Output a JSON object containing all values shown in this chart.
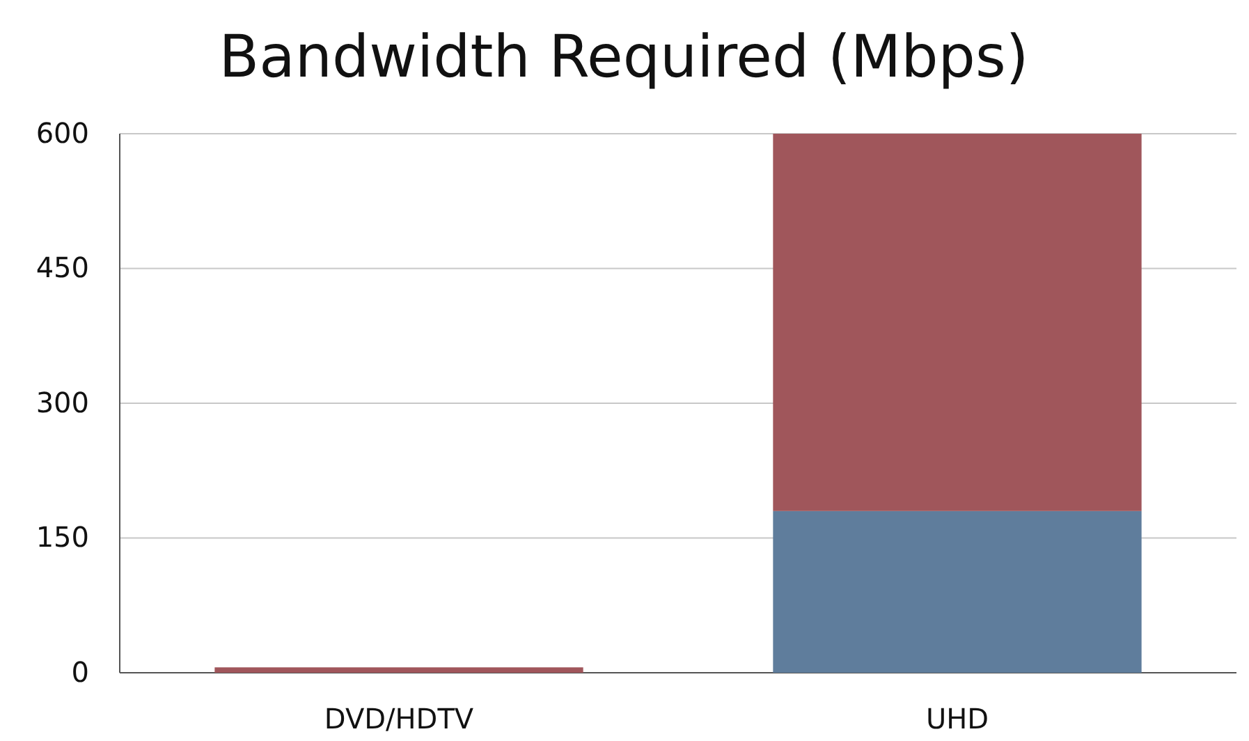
{
  "chart_data": {
    "type": "bar",
    "title": "Bandwidth Required (Mbps)",
    "categories": [
      "DVD/HDTV",
      "UHD"
    ],
    "stacked": true,
    "series": [
      {
        "color": "#5f7d9c",
        "values": [
          null,
          180
        ]
      },
      {
        "color": "#a0565b",
        "values": [
          6,
          420
        ]
      }
    ],
    "ylim": [
      0,
      600
    ],
    "yticks": [
      0,
      150,
      300,
      450,
      600
    ],
    "grid": "y"
  }
}
